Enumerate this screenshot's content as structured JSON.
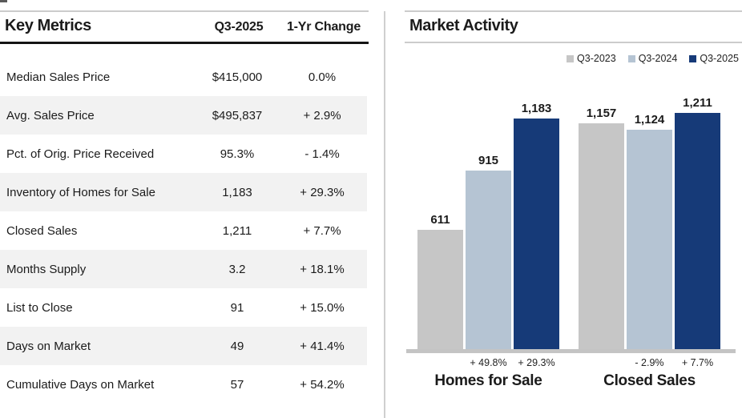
{
  "left_panel": {
    "title": "Key Metrics",
    "columns": [
      "Q3-2025",
      "1-Yr Change"
    ],
    "rows": [
      {
        "label": "Median Sales Price",
        "value": "$415,000",
        "change": "0.0%"
      },
      {
        "label": "Avg. Sales Price",
        "value": "$495,837",
        "change": "+ 2.9%"
      },
      {
        "label": "Pct. of Orig. Price Received",
        "value": "95.3%",
        "change": "- 1.4%"
      },
      {
        "label": "Inventory of Homes for Sale",
        "value": "1,183",
        "change": "+ 29.3%"
      },
      {
        "label": "Closed Sales",
        "value": "1,211",
        "change": "+ 7.7%"
      },
      {
        "label": "Months Supply",
        "value": "3.2",
        "change": "+ 18.1%"
      },
      {
        "label": "List to Close",
        "value": "91",
        "change": "+ 15.0%"
      },
      {
        "label": "Days on Market",
        "value": "49",
        "change": "+ 41.4%"
      },
      {
        "label": "Cumulative Days on Market",
        "value": "57",
        "change": "+ 54.2%"
      }
    ]
  },
  "right_panel": {
    "title": "Market Activity",
    "legend": [
      {
        "label": "Q3-2023",
        "color": "#c6c6c6"
      },
      {
        "label": "Q3-2024",
        "color": "#b5c4d3"
      },
      {
        "label": "Q3-2025",
        "color": "#163a78"
      }
    ]
  },
  "chart_data": {
    "type": "bar",
    "title": "Market Activity",
    "series": [
      "Q3-2023",
      "Q3-2024",
      "Q3-2025"
    ],
    "categories": [
      "Homes for Sale",
      "Closed Sales"
    ],
    "colors": {
      "Q3-2023": "#c6c6c6",
      "Q3-2024": "#b5c4d3",
      "Q3-2025": "#163a78"
    },
    "groups": [
      {
        "category": "Homes for Sale",
        "bars": [
          {
            "series": "Q3-2023",
            "value": 611,
            "label": "611",
            "change": ""
          },
          {
            "series": "Q3-2024",
            "value": 915,
            "label": "915",
            "change": "+ 49.8%"
          },
          {
            "series": "Q3-2025",
            "value": 1183,
            "label": "1,183",
            "change": "+ 29.3%"
          }
        ]
      },
      {
        "category": "Closed Sales",
        "bars": [
          {
            "series": "Q3-2023",
            "value": 1157,
            "label": "1,157",
            "change": ""
          },
          {
            "series": "Q3-2024",
            "value": 1124,
            "label": "1,124",
            "change": "- 2.9%"
          },
          {
            "series": "Q3-2025",
            "value": 1211,
            "label": "1,211",
            "change": "+ 7.7%"
          }
        ]
      }
    ],
    "ylim": [
      0,
      1260
    ],
    "grid": false,
    "legend_position": "top-right"
  }
}
